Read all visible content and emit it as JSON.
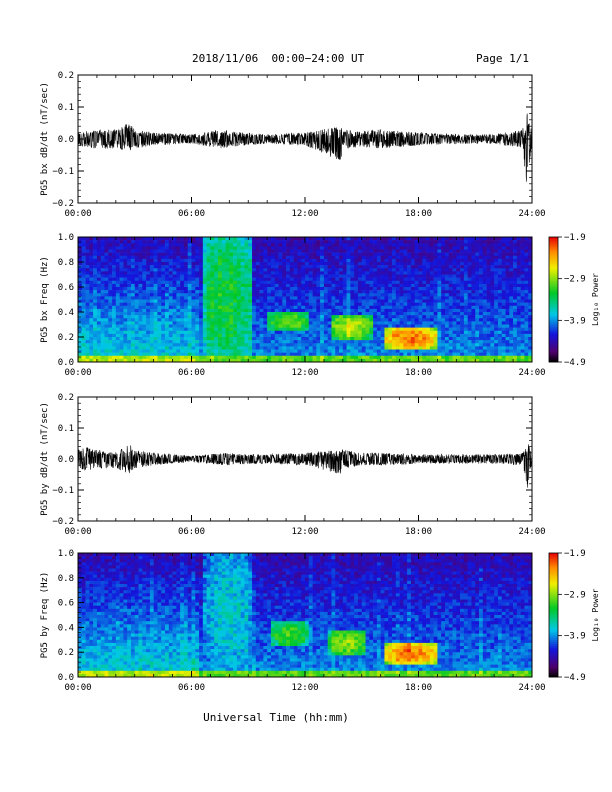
{
  "header": {
    "title": "2018/11/06  00:00−24:00 UT",
    "page": "Page 1/1"
  },
  "footer": {
    "xlabel": "Universal Time (hh:mm)"
  },
  "chart_data": [
    {
      "type": "line",
      "ylabel": "PG5 bx dB/dt (nT/sec)",
      "ylim": [
        -0.2,
        0.2
      ],
      "yticks": [
        "0.2",
        "0.1",
        "0.0",
        "−0.1",
        "−0.2"
      ],
      "xticks": [
        "00:00",
        "06:00",
        "12:00",
        "18:00",
        "24:00"
      ],
      "xlim": [
        0,
        24
      ],
      "series": [
        {
          "x": [
            0,
            1,
            2,
            2.7,
            3,
            4,
            6,
            7.7,
            8,
            9,
            10,
            12,
            13.9,
            14,
            15,
            16,
            18,
            20,
            22,
            23.5,
            23.75,
            23.9,
            24
          ],
          "max": [
            0.02,
            0.03,
            0.03,
            0.05,
            0.03,
            0.02,
            0.015,
            0.03,
            0.025,
            0.02,
            0.015,
            0.02,
            0.04,
            0.03,
            0.025,
            0.03,
            0.02,
            0.015,
            0.015,
            0.03,
            0.08,
            0.05,
            0.02
          ],
          "min": [
            -0.02,
            -0.03,
            -0.03,
            -0.04,
            -0.03,
            -0.02,
            -0.015,
            -0.03,
            -0.025,
            -0.02,
            -0.015,
            -0.02,
            -0.07,
            -0.03,
            -0.025,
            -0.03,
            -0.02,
            -0.015,
            -0.015,
            -0.03,
            -0.16,
            -0.06,
            -0.02
          ]
        }
      ]
    },
    {
      "type": "heatmap",
      "ylabel": "PG5 bx Freq (Hz)",
      "ylim": [
        0,
        1.0
      ],
      "yticks": [
        "1.0",
        "0.8",
        "0.6",
        "0.4",
        "0.2",
        "0.0"
      ],
      "xticks": [
        "00:00",
        "06:00",
        "12:00",
        "18:00",
        "24:00"
      ],
      "xlim": [
        0,
        24
      ],
      "colorbar": {
        "label": "Log₁₀ Power",
        "ticks": [
          "−1.9",
          "−2.9",
          "−3.9",
          "−4.9"
        ],
        "range": [
          -4.9,
          -1.9
        ]
      },
      "features": [
        {
          "t0": 6.7,
          "t1": 9.1,
          "f0": 0.0,
          "f1": 1.0,
          "level": -3.3
        },
        {
          "t0": 10.1,
          "t1": 12.2,
          "f0": 0.25,
          "f1": 0.4,
          "level": -3.0
        },
        {
          "t0": 13.4,
          "t1": 15.5,
          "f0": 0.18,
          "f1": 0.38,
          "level": -2.8
        },
        {
          "t0": 16.2,
          "t1": 19.0,
          "f0": 0.1,
          "f1": 0.28,
          "level": -2.2
        }
      ]
    },
    {
      "type": "line",
      "ylabel": "PG5 by dB/dt (nT/sec)",
      "ylim": [
        -0.2,
        0.2
      ],
      "yticks": [
        "0.2",
        "0.1",
        "0.0",
        "−0.1",
        "−0.2"
      ],
      "xticks": [
        "00:00",
        "06:00",
        "12:00",
        "18:00",
        "24:00"
      ],
      "xlim": [
        0,
        24
      ],
      "series": [
        {
          "x": [
            0,
            0.5,
            1,
            2,
            2.7,
            3,
            4,
            6,
            7.7,
            8,
            9,
            10,
            12,
            13.9,
            14,
            15,
            16,
            18,
            20,
            22,
            23.5,
            23.8,
            23.9,
            24
          ],
          "max": [
            0.03,
            0.04,
            0.03,
            0.02,
            0.05,
            0.03,
            0.02,
            0.01,
            0.02,
            0.02,
            0.015,
            0.015,
            0.02,
            0.03,
            0.03,
            0.02,
            0.02,
            0.015,
            0.015,
            0.015,
            0.02,
            0.05,
            0.03,
            0.01
          ],
          "min": [
            -0.03,
            -0.04,
            -0.03,
            -0.03,
            -0.05,
            -0.03,
            -0.02,
            -0.01,
            -0.02,
            -0.02,
            -0.015,
            -0.015,
            -0.02,
            -0.05,
            -0.03,
            -0.02,
            -0.02,
            -0.015,
            -0.015,
            -0.015,
            -0.02,
            -0.1,
            -0.04,
            -0.01
          ]
        }
      ]
    },
    {
      "type": "heatmap",
      "ylabel": "PG5 by Freq (Hz)",
      "ylim": [
        0,
        1.0
      ],
      "yticks": [
        "1.0",
        "0.8",
        "0.6",
        "0.4",
        "0.2",
        "0.0"
      ],
      "xticks": [
        "00:00",
        "06:00",
        "12:00",
        "18:00",
        "24:00"
      ],
      "xlim": [
        0,
        24
      ],
      "colorbar": {
        "label": "Log₁₀ Power",
        "ticks": [
          "−1.9",
          "−2.9",
          "−3.9",
          "−4.9"
        ],
        "range": [
          -4.9,
          -1.9
        ]
      },
      "features": [
        {
          "t0": 6.7,
          "t1": 9.1,
          "f0": 0.0,
          "f1": 1.0,
          "level": -3.7
        },
        {
          "t0": 10.2,
          "t1": 12.2,
          "f0": 0.25,
          "f1": 0.45,
          "level": -3.1
        },
        {
          "t0": 13.3,
          "t1": 15.2,
          "f0": 0.18,
          "f1": 0.38,
          "level": -2.9
        },
        {
          "t0": 16.2,
          "t1": 19.0,
          "f0": 0.1,
          "f1": 0.28,
          "level": -2.2
        }
      ]
    }
  ]
}
